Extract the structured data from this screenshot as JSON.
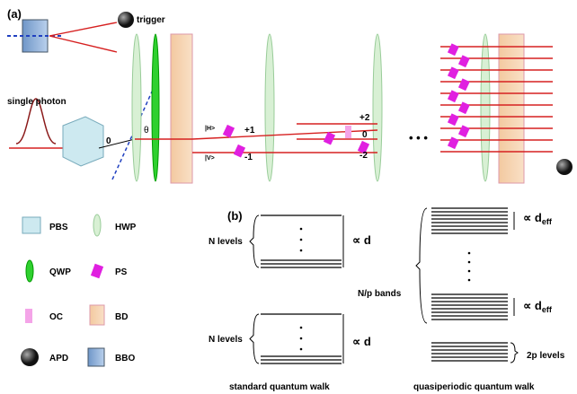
{
  "panel_a": {
    "label": "(a)",
    "trigger": "trigger",
    "single_photon": "single photon",
    "angle_zero": "0",
    "theta": "θ",
    "beam_labels": {
      "h": "|H>",
      "v": "|V>",
      "plus1": "+1",
      "minus1": "-1",
      "plus2": "+2",
      "zero": "0",
      "minus2": "-2"
    },
    "ellipsis": "• • •"
  },
  "legend": {
    "items": [
      "PBS",
      "HWP",
      "QWP",
      "PS",
      "OC",
      "BD",
      "APD",
      "BBO"
    ]
  },
  "panel_b": {
    "label": "(b)",
    "standard": {
      "levels_top": "N levels",
      "spacing_top": "∝ d",
      "levels_bottom": "N levels",
      "spacing_bottom": "∝ d",
      "caption": "standard quantum walk"
    },
    "quasiperiodic": {
      "bands": "N/p bands",
      "spacing_top": {
        "prefix": "∝ d",
        "sub": "eff"
      },
      "spacing_mid": {
        "prefix": "∝ d",
        "sub": "eff"
      },
      "levels": "2p levels",
      "caption": "quasiperiodic quantum walk"
    }
  }
}
